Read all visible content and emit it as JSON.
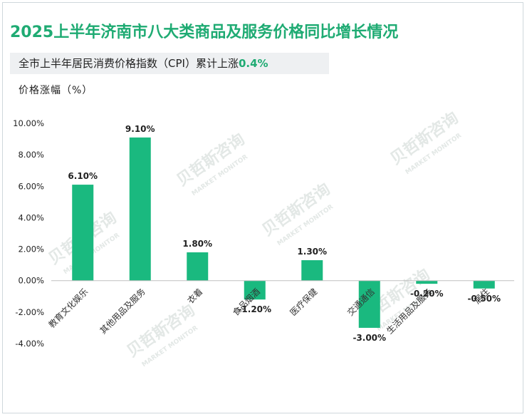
{
  "title": "2025上半年济南市八大类商品及服务价格同比增长情况",
  "banner": {
    "text": "全市上半年居民消费价格指数（CPI）累计上涨",
    "highlight": "0.4%"
  },
  "y_axis_title": "价格涨幅（%）",
  "watermark": {
    "cn": "贝哲斯咨询",
    "en": "MARKET MONITOR"
  },
  "colors": {
    "title": "#1fab73",
    "bar": "#1ab97f",
    "banner_bg": "#eef0f2"
  },
  "chart_data": {
    "type": "bar",
    "title": "2025上半年济南市八大类商品及服务价格同比增长情况",
    "ylabel": "价格涨幅（%）",
    "xlabel": "",
    "categories": [
      "教育文化娱乐",
      "其他用品及服务",
      "衣着",
      "食品烟酒",
      "医疗保健",
      "交通通信",
      "生活用品及服务",
      "居住"
    ],
    "values": [
      6.1,
      9.1,
      1.8,
      -1.2,
      1.3,
      -3.0,
      -0.2,
      -0.5
    ],
    "data_labels": [
      "6.10%",
      "9.10%",
      "1.80%",
      "-1.20%",
      "1.30%",
      "-3.00%",
      "-0.20%",
      "-0.50%"
    ],
    "yticks": [
      10,
      8,
      6,
      4,
      2,
      0,
      -2,
      -4
    ],
    "ytick_labels": [
      "10.00%",
      "8.00%",
      "6.00%",
      "4.00%",
      "2.00%",
      "0.00%",
      "-2.00%",
      "-4.00%"
    ],
    "ylim": [
      -4,
      10
    ],
    "grid": false,
    "legend": "none"
  }
}
